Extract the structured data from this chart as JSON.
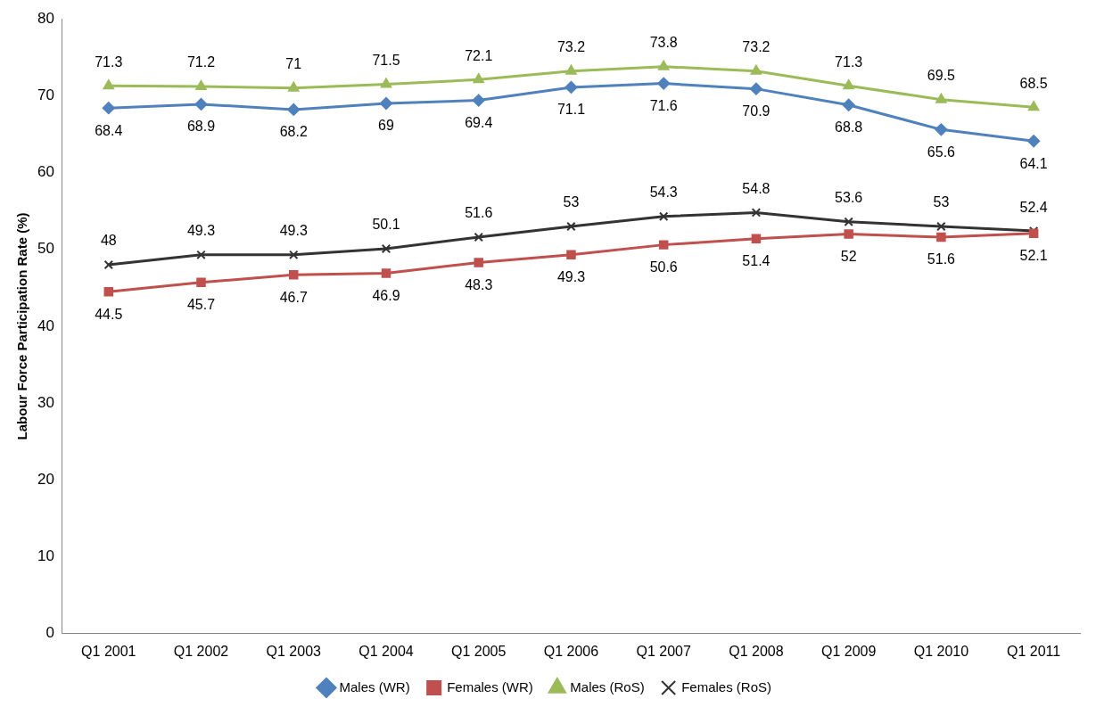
{
  "chart_data": {
    "type": "line",
    "ylabel": "Labour Force Participation Rate (%)",
    "categories": [
      "Q1 2001",
      "Q1 2002",
      "Q1 2003",
      "Q1 2004",
      "Q1 2005",
      "Q1 2006",
      "Q1 2007",
      "Q1 2008",
      "Q1 2009",
      "Q1 2010",
      "Q1 2011"
    ],
    "series": [
      {
        "name": "Males (WR)",
        "color": "#4f81bd",
        "marker": "diamond",
        "values": [
          68.4,
          68.9,
          68.2,
          69,
          69.4,
          71.1,
          71.6,
          70.9,
          68.8,
          65.6,
          64.1
        ]
      },
      {
        "name": "Females (WR)",
        "color": "#c0504d",
        "marker": "square",
        "values": [
          44.5,
          45.7,
          46.7,
          46.9,
          48.3,
          49.3,
          50.6,
          51.4,
          52,
          51.6,
          52.1
        ]
      },
      {
        "name": "Males (RoS)",
        "color": "#9bbb59",
        "marker": "triangle",
        "values": [
          71.3,
          71.2,
          71,
          71.5,
          72.1,
          73.2,
          73.8,
          73.2,
          71.3,
          69.5,
          68.5
        ]
      },
      {
        "name": "Females (RoS)",
        "color": "#333333",
        "marker": "cross",
        "values": [
          48,
          49.3,
          49.3,
          50.1,
          51.6,
          53,
          54.3,
          54.8,
          53.6,
          53,
          52.4
        ]
      }
    ],
    "ylim": [
      0,
      80
    ],
    "yticks": [
      0,
      10,
      20,
      30,
      40,
      50,
      60,
      70,
      80
    ],
    "grid": false,
    "legend": "bottom",
    "data_labels": true
  }
}
